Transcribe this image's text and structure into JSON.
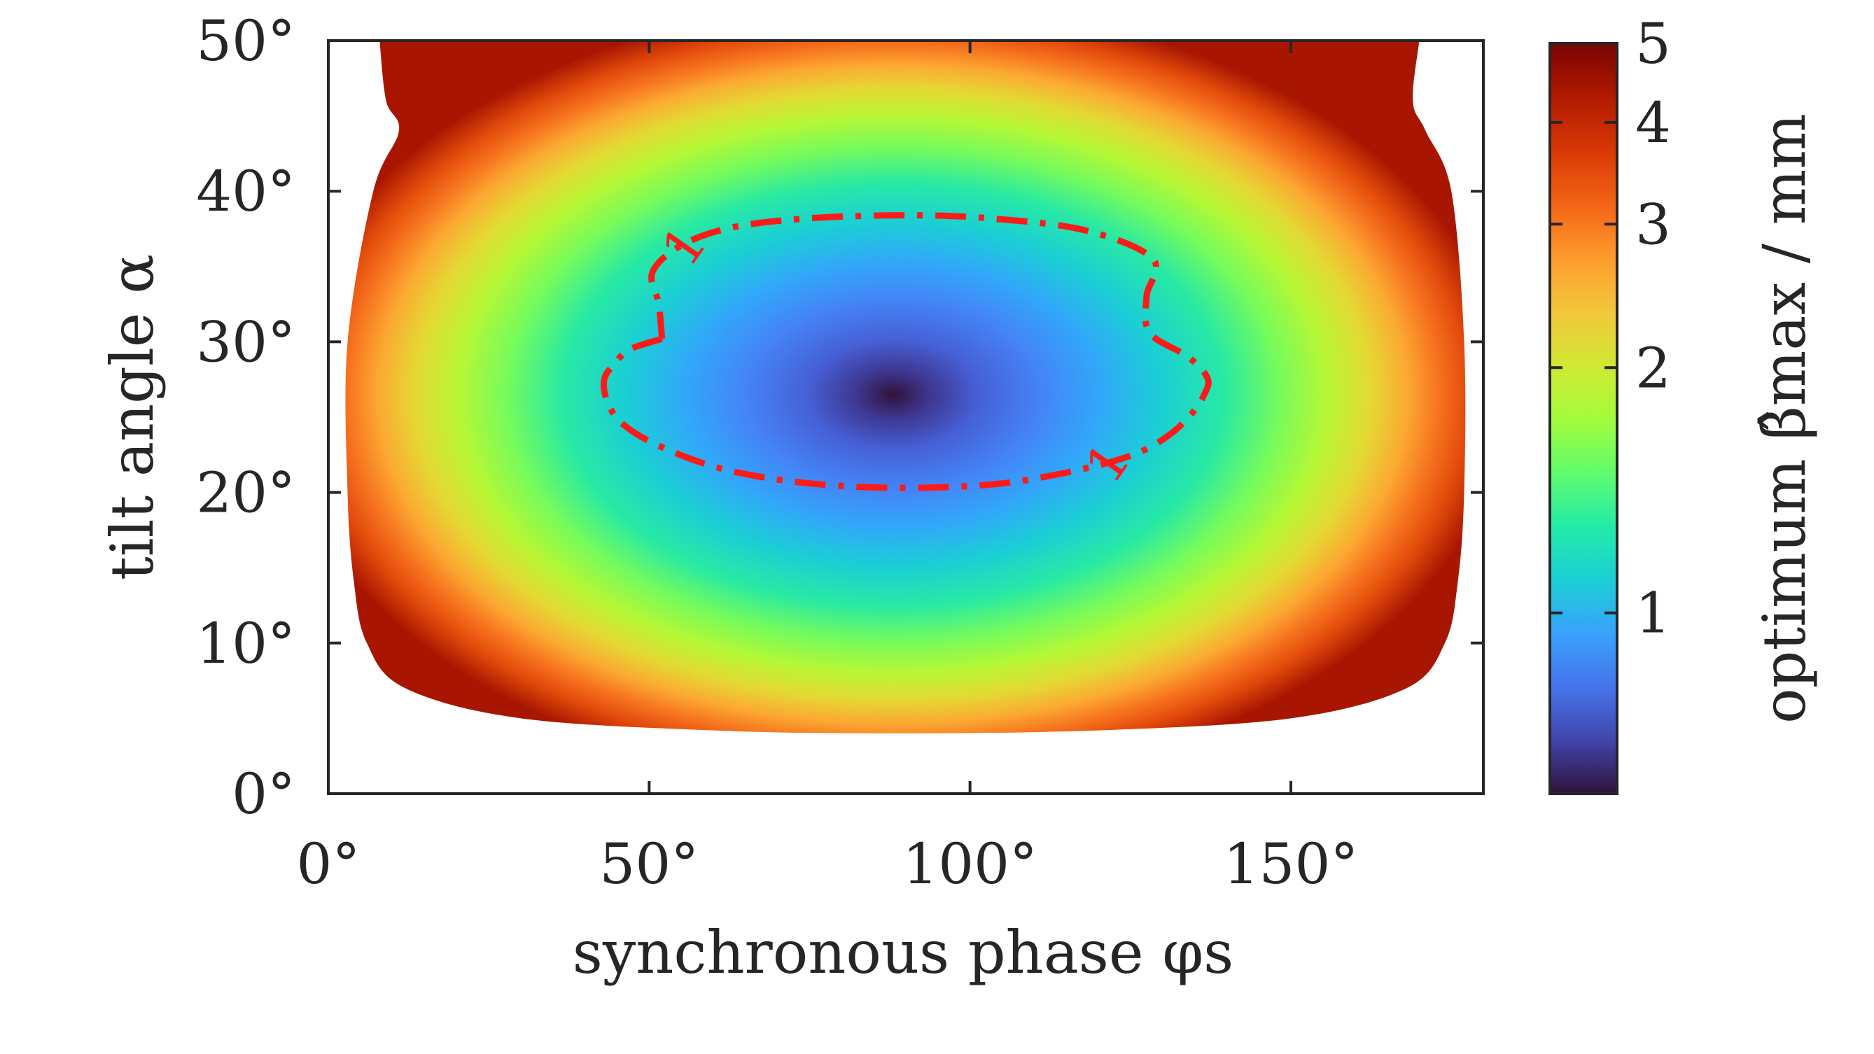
{
  "chart_data": {
    "type": "heatmap",
    "title": "",
    "xlabel": "synchronous phase φs",
    "ylabel": "tilt angle α",
    "colorbar_label": "optimum β̂max / mm",
    "xlim": [
      0,
      180
    ],
    "ylim": [
      0,
      50
    ],
    "x_ticks": [
      0,
      50,
      100,
      150
    ],
    "x_tick_labels": [
      "0°",
      "50°",
      "100°",
      "150°"
    ],
    "y_ticks": [
      0,
      10,
      20,
      30,
      40,
      50
    ],
    "y_tick_labels": [
      "0°",
      "10°",
      "20°",
      "30°",
      "40°",
      "50°"
    ],
    "colorbar": {
      "scale": "log",
      "range": [
        0.6,
        5
      ],
      "ticks": [
        1,
        2,
        3,
        4,
        5
      ],
      "tick_labels": [
        "1",
        "2",
        "3",
        "4",
        "5"
      ]
    },
    "colormap": [
      "#30123b",
      "#4145ab",
      "#4675ed",
      "#39a2fc",
      "#1bcfd4",
      "#24eca6",
      "#61fc6c",
      "#a4fc3b",
      "#d1e834",
      "#f3c63a",
      "#fe9b2d",
      "#f36315",
      "#d93806",
      "#b11901",
      "#7a0402"
    ],
    "field": {
      "description_of_grid": "optimum beta_max over the valid (phase, tilt) region; undefined outside",
      "minimum_value": 0.6,
      "minimum_location": {
        "phi_s": 88,
        "alpha": 26.5
      },
      "valid_region_boundary": [
        [
          8,
          50
        ],
        [
          9,
          46
        ],
        [
          11,
          44
        ],
        [
          7,
          40
        ],
        [
          3,
          30
        ],
        [
          3,
          20
        ],
        [
          4,
          14
        ],
        [
          6,
          10
        ],
        [
          12,
          7
        ],
        [
          30,
          5
        ],
        [
          60,
          4.2
        ],
        [
          88,
          4
        ],
        [
          120,
          4.2
        ],
        [
          150,
          5
        ],
        [
          168,
          7
        ],
        [
          174,
          10
        ],
        [
          176,
          14
        ],
        [
          177,
          20
        ],
        [
          177,
          30
        ],
        [
          175,
          40
        ],
        [
          171,
          44
        ],
        [
          169,
          46
        ],
        [
          170,
          50
        ]
      ]
    },
    "contours": [
      {
        "level": 1,
        "label": "1",
        "style": "dash-dot",
        "color": "#ff1a1a",
        "path": [
          [
            52,
            30.2
          ],
          [
            47,
            29.5
          ],
          [
            44.5,
            28.5
          ],
          [
            43,
            27.5
          ],
          [
            43.5,
            26
          ],
          [
            46,
            24.5
          ],
          [
            52,
            23
          ],
          [
            62,
            21.5
          ],
          [
            75,
            20.6
          ],
          [
            90,
            20.3
          ],
          [
            105,
            20.6
          ],
          [
            118,
            21.6
          ],
          [
            126,
            22.6
          ],
          [
            131,
            23.8
          ],
          [
            134.5,
            25.2
          ],
          [
            136.5,
            26.5
          ],
          [
            137,
            27.6
          ],
          [
            134,
            29
          ],
          [
            128,
            30.6
          ],
          [
            127.5,
            33
          ],
          [
            128.5,
            35.5
          ],
          [
            118,
            37.4
          ],
          [
            103,
            38.2
          ],
          [
            90,
            38.4
          ],
          [
            75,
            38.2
          ],
          [
            63,
            37.6
          ],
          [
            55,
            36.4
          ],
          [
            50.5,
            34.6
          ],
          [
            51.5,
            32.5
          ],
          [
            52,
            30.2
          ]
        ],
        "label_positions": [
          {
            "phi_s": 56,
            "alpha": 36.2,
            "rotation": -55
          },
          {
            "phi_s": 122,
            "alpha": 21.8,
            "rotation": -55
          }
        ]
      }
    ]
  }
}
